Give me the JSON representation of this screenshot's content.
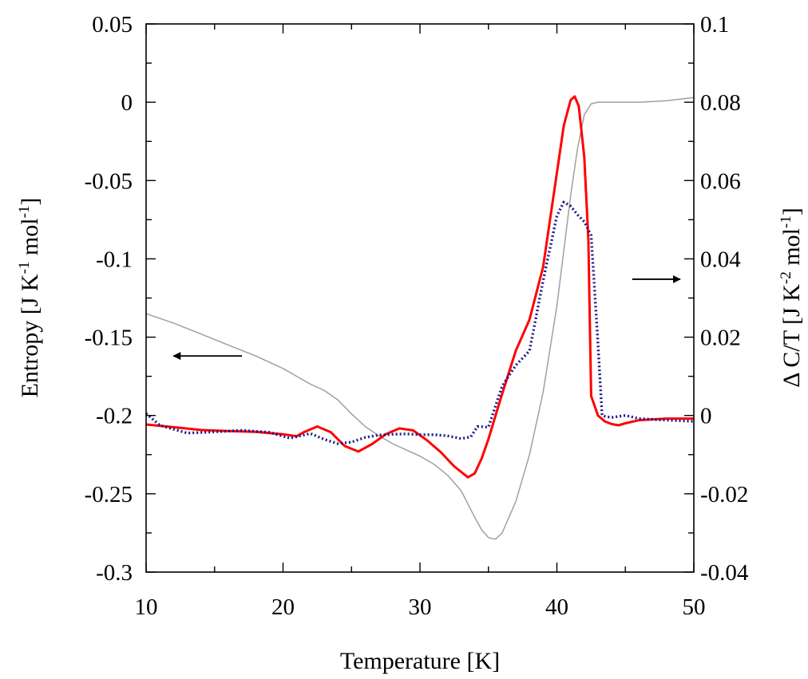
{
  "chart_data": {
    "type": "line",
    "xlabel": "Temperature [K]",
    "ylabel_left": {
      "text": "Entropy [J K",
      "sup1": "-1",
      "mid": " mol",
      "sup2": "-1",
      "end": "]"
    },
    "ylabel_right": {
      "text": "Δ C/T [J K",
      "sup1": "-2",
      "mid": " mol",
      "sup2": "-1",
      "end": "]"
    },
    "xlim": [
      10,
      50
    ],
    "ylim_left": [
      -0.3,
      0.05
    ],
    "ylim_right": [
      -0.04,
      0.1
    ],
    "x_ticks": [
      10,
      20,
      30,
      40,
      50
    ],
    "x_tick_labels": [
      "10",
      "20",
      "30",
      "40",
      "50"
    ],
    "y_left_ticks": [
      -0.3,
      -0.25,
      -0.2,
      -0.15,
      -0.1,
      -0.05,
      0,
      0.05
    ],
    "y_left_tick_labels": [
      "-0.3",
      "-0.25",
      "-0.2",
      "-0.15",
      "-0.1",
      "-0.05",
      "0",
      "0.05"
    ],
    "y_right_ticks": [
      -0.04,
      -0.02,
      0,
      0.02,
      0.04,
      0.06,
      0.08,
      0.1
    ],
    "y_right_tick_labels": [
      "-0.04",
      "-0.02",
      "0",
      "0.02",
      "0.04",
      "0.06",
      "0.08",
      "0.1"
    ],
    "grid": false,
    "annotations": [
      {
        "type": "arrow",
        "direction": "left",
        "x_from": 17.0,
        "x_to": 12.0,
        "y_axis": "left",
        "y": -0.162
      },
      {
        "type": "arrow",
        "direction": "right",
        "x_from": 45.5,
        "x_to": 49.0,
        "y_axis": "left",
        "y": -0.113
      }
    ],
    "series": [
      {
        "axis": "left",
        "color": "#a0a0a0",
        "style": "solid",
        "x": [
          10,
          12,
          14,
          16,
          18,
          20,
          21,
          22,
          23,
          24,
          25,
          26,
          27,
          28,
          29,
          30,
          31,
          32,
          33,
          34,
          34.5,
          35,
          35.5,
          36,
          37,
          38,
          39,
          40,
          40.5,
          41,
          41.5,
          42,
          42.5,
          43,
          44,
          45,
          46,
          47,
          48,
          49,
          50
        ],
        "y": [
          -0.135,
          -0.141,
          -0.148,
          -0.155,
          -0.162,
          -0.17,
          -0.175,
          -0.18,
          -0.184,
          -0.19,
          -0.199,
          -0.207,
          -0.213,
          -0.218,
          -0.222,
          -0.226,
          -0.231,
          -0.238,
          -0.248,
          -0.265,
          -0.273,
          -0.278,
          -0.279,
          -0.275,
          -0.255,
          -0.225,
          -0.185,
          -0.13,
          -0.095,
          -0.06,
          -0.03,
          -0.008,
          -0.001,
          0.0,
          0.0,
          0.0,
          0.0,
          0.0005,
          0.001,
          0.002,
          0.003
        ]
      },
      {
        "axis": "right",
        "color": "#ff0000",
        "style": "solid",
        "x": [
          10,
          12,
          14,
          16,
          18,
          20,
          21,
          21.5,
          22.5,
          23.5,
          24.5,
          25.5,
          26.5,
          27.5,
          28.5,
          29.5,
          30.5,
          31.5,
          32.5,
          33.5,
          34,
          34.5,
          35,
          36,
          37,
          38,
          39,
          40,
          40.5,
          41,
          41.3,
          41.6,
          42,
          42.3,
          42.5,
          43,
          43.5,
          44,
          44.5,
          45,
          46,
          48,
          50
        ],
        "y": [
          -0.0023,
          -0.003,
          -0.0037,
          -0.004,
          -0.0042,
          -0.0048,
          -0.0053,
          -0.0043,
          -0.0028,
          -0.0043,
          -0.0078,
          -0.0092,
          -0.0073,
          -0.0048,
          -0.0033,
          -0.0038,
          -0.0063,
          -0.0093,
          -0.013,
          -0.0158,
          -0.0148,
          -0.011,
          -0.006,
          0.0055,
          0.0165,
          0.0245,
          0.038,
          0.062,
          0.074,
          0.0805,
          0.0815,
          0.079,
          0.066,
          0.045,
          0.005,
          0.0,
          -0.0015,
          -0.0022,
          -0.0025,
          -0.002,
          -0.0012,
          -0.0008,
          -0.0008
        ]
      },
      {
        "axis": "right",
        "color": "#1a1a8c",
        "style": "dotted",
        "x": [
          10,
          11,
          13,
          15,
          17,
          19,
          20.5,
          22,
          23,
          24,
          25,
          26,
          27,
          28,
          29,
          30,
          31,
          32,
          33,
          33.7,
          34.2,
          35,
          36,
          37,
          38,
          39,
          40,
          40.5,
          41,
          41.5,
          42,
          42.5,
          43,
          43.3,
          43.6,
          44,
          45,
          46,
          48,
          50
        ],
        "y": [
          0.0005,
          -0.0025,
          -0.0045,
          -0.0042,
          -0.0038,
          -0.0043,
          -0.0058,
          -0.0046,
          -0.0061,
          -0.0072,
          -0.0068,
          -0.0056,
          -0.005,
          -0.0048,
          -0.0047,
          -0.0049,
          -0.0049,
          -0.0052,
          -0.0059,
          -0.0055,
          -0.0028,
          -0.003,
          0.0075,
          0.0128,
          0.0165,
          0.0345,
          0.051,
          0.0545,
          0.0535,
          0.0513,
          0.0495,
          0.046,
          0.0185,
          0.0,
          -0.0003,
          -0.0005,
          0.0,
          -0.0008,
          -0.0012,
          -0.0015
        ]
      }
    ]
  }
}
